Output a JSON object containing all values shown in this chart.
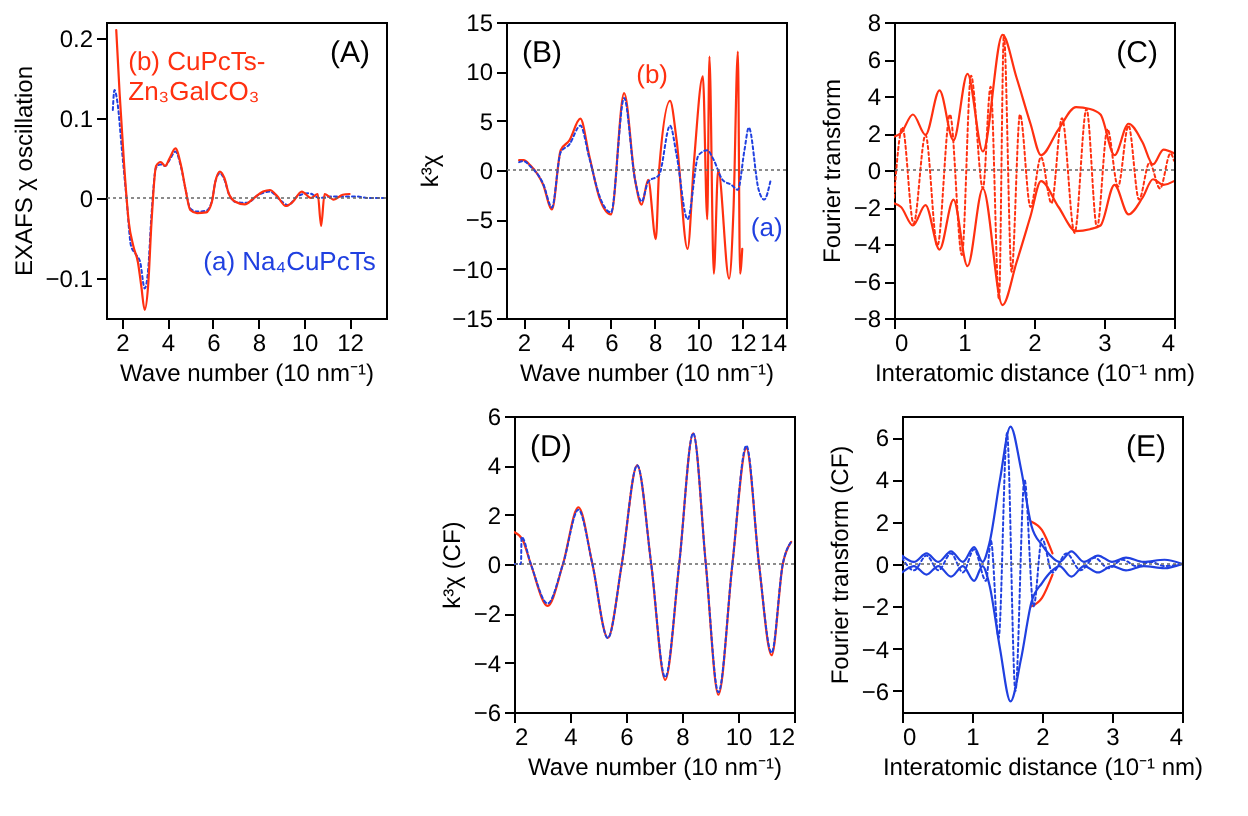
{
  "chart_data": [
    {
      "type": "line",
      "xlabel": "Wave number (10 nm⁻¹)",
      "ylabel": "EXAFS χ oscillation",
      "annotations": [
        "(A)"
      ],
      "xlim": [
        1.3,
        13.6
      ],
      "xticks": [
        2,
        4,
        6,
        8,
        10,
        12
      ],
      "ylim": [
        -0.15,
        0.22
      ],
      "yticks": [
        -0.1,
        0,
        0.1,
        0.2
      ],
      "ref_lines": [
        {
          "axis": "y",
          "value": 0,
          "color": "#666666",
          "line_style": "dotted"
        }
      ],
      "series": [
        {
          "name": "(a) Na₄CuPcTs",
          "color": "#2040e0",
          "line_style": "dotted",
          "x": [
            1.6,
            1.67,
            1.8,
            2.0,
            2.2,
            2.4,
            2.6,
            2.8,
            3.0,
            3.15,
            3.3,
            3.5,
            3.7,
            3.9,
            4.1,
            4.35,
            4.6,
            4.8,
            5.0,
            5.3,
            5.7,
            5.95,
            6.1,
            6.3,
            6.5,
            6.7,
            7.0,
            7.5,
            8.0,
            8.5,
            9.0,
            9.3,
            9.7,
            10.2,
            10.7,
            11.2,
            11.8,
            12.3,
            12.8,
            13.5
          ],
          "values": [
            0.11,
            0.135,
            0.12,
            0.06,
            0.0,
            -0.06,
            -0.07,
            -0.08,
            -0.113,
            -0.09,
            -0.02,
            0.038,
            0.042,
            0.04,
            0.048,
            0.058,
            0.038,
            0.01,
            -0.013,
            -0.017,
            -0.016,
            -0.004,
            0.02,
            0.031,
            0.023,
            0.005,
            -0.005,
            -0.006,
            0.004,
            0.008,
            -0.004,
            -0.009,
            0.002,
            0.006,
            0.0,
            0.002,
            0.002,
            0.002,
            0.0,
            0.0
          ]
        },
        {
          "name": "(b) CuPcTs-\nZn₃GalCO₃",
          "color": "#ff3010",
          "line_style": "solid",
          "x": [
            1.75,
            1.9,
            2.1,
            2.3,
            2.5,
            2.7,
            2.85,
            3.0,
            3.15,
            3.3,
            3.5,
            3.7,
            3.9,
            4.1,
            4.35,
            4.6,
            4.8,
            5.0,
            5.3,
            5.7,
            5.95,
            6.1,
            6.3,
            6.5,
            6.7,
            7.0,
            7.4,
            7.8,
            8.2,
            8.5,
            8.8,
            9.2,
            9.5,
            9.9,
            10.3,
            10.6,
            10.75,
            10.9,
            11.3,
            11.7,
            12.0
          ],
          "values": [
            0.21,
            0.13,
            0.04,
            -0.03,
            -0.06,
            -0.08,
            -0.11,
            -0.14,
            -0.11,
            -0.03,
            0.04,
            0.045,
            0.04,
            0.05,
            0.062,
            0.04,
            0.01,
            -0.015,
            -0.019,
            -0.018,
            -0.005,
            0.02,
            0.033,
            0.025,
            0.005,
            -0.005,
            -0.008,
            0.0,
            0.008,
            0.01,
            0.003,
            -0.01,
            -0.005,
            0.008,
            0.0,
            0.005,
            -0.035,
            0.005,
            -0.002,
            0.004,
            0.005
          ]
        }
      ]
    },
    {
      "type": "line",
      "xlabel": "Wave number (10 nm⁻¹)",
      "ylabel": "k³χ",
      "annotations": [
        "(B)"
      ],
      "xlim": [
        1.2,
        14
      ],
      "xticks": [
        2,
        4,
        6,
        8,
        10,
        12,
        14
      ],
      "ylim": [
        -15,
        15
      ],
      "yticks": [
        -15,
        -10,
        -5,
        0,
        5,
        10,
        15
      ],
      "ref_lines": [
        {
          "axis": "y",
          "value": 0,
          "color": "#666666",
          "line_style": "dotted"
        }
      ],
      "series": [
        {
          "name": "(b)",
          "color": "#ff3010",
          "line_style": "solid",
          "x": [
            1.8,
            2.0,
            2.3,
            2.9,
            3.3,
            3.7,
            4.1,
            4.6,
            5.0,
            5.5,
            6.0,
            6.6,
            7.1,
            7.4,
            7.7,
            8.05,
            8.2,
            8.7,
            9.0,
            9.5,
            9.8,
            10.2,
            10.4,
            10.5,
            10.7,
            10.9,
            11.4,
            11.6,
            11.8,
            11.9,
            12.0
          ],
          "values": [
            1.0,
            1.0,
            0.5,
            -1.5,
            -4.0,
            2.0,
            3.0,
            5.2,
            1.5,
            -3.0,
            -4.5,
            7.8,
            -1.0,
            -3.5,
            -1.0,
            -7.0,
            0.0,
            7.0,
            3.0,
            -8.0,
            1.0,
            9.5,
            -5.0,
            11.5,
            -10.5,
            0.0,
            -11.0,
            -4.0,
            12.0,
            -10.5,
            -8.0
          ]
        },
        {
          "name": "(a)",
          "color": "#2040e0",
          "line_style": "dotted",
          "x": [
            1.8,
            2.0,
            2.3,
            2.9,
            3.3,
            3.7,
            4.1,
            4.6,
            5.0,
            5.5,
            6.0,
            6.6,
            7.1,
            7.4,
            7.7,
            8.2,
            8.7,
            9.0,
            9.5,
            10.0,
            10.4,
            10.7,
            11.1,
            11.5,
            11.8,
            12.1,
            12.3,
            12.75,
            13.0,
            13.3
          ],
          "values": [
            0.8,
            0.9,
            0.4,
            -1.4,
            -3.8,
            1.8,
            2.6,
            4.5,
            1.3,
            -2.8,
            -4.3,
            7.3,
            -1.0,
            -3.2,
            -1.2,
            -0.5,
            4.5,
            1.5,
            -5.0,
            1.5,
            2.0,
            1.0,
            -1.0,
            -1.5,
            -2.0,
            2.0,
            4.3,
            -2.0,
            -3.0,
            -1.0
          ]
        }
      ]
    },
    {
      "type": "line",
      "xlabel": "Interatomic distance (10⁻¹ nm)",
      "ylabel": "Fourier transform",
      "annotations": [
        "(C)"
      ],
      "xlim": [
        0,
        4
      ],
      "xticks": [
        0,
        1,
        2,
        3,
        4
      ],
      "ylim": [
        -8,
        8
      ],
      "yticks": [
        -8,
        -6,
        -4,
        -2,
        0,
        2,
        4,
        6,
        8
      ],
      "ref_lines": [
        {
          "axis": "y",
          "value": 0,
          "color": "#666666",
          "line_style": "dotted"
        }
      ],
      "series": [
        {
          "color": "#ff3010",
          "line_style": "solid",
          "x": [
            0,
            0.1,
            0.27,
            0.45,
            0.65,
            0.85,
            1.05,
            1.27,
            1.55,
            1.75,
            1.95,
            2.1,
            2.35,
            2.6,
            2.8,
            2.95,
            3.15,
            3.35,
            3.55,
            3.7,
            3.85,
            4.0
          ],
          "values": [
            1.8,
            2.0,
            3.0,
            1.9,
            4.3,
            1.6,
            5.2,
            1.0,
            7.3,
            5.0,
            2.5,
            0.8,
            2.2,
            3.4,
            3.3,
            3.0,
            0.8,
            2.5,
            1.5,
            0.3,
            1.1,
            0.9
          ]
        },
        {
          "color": "#ff3010",
          "line_style": "solid",
          "x": [
            0,
            0.1,
            0.27,
            0.45,
            0.65,
            0.85,
            1.05,
            1.27,
            1.55,
            1.75,
            1.95,
            2.1,
            2.35,
            2.6,
            2.8,
            2.95,
            3.15,
            3.35,
            3.55,
            3.7,
            3.85,
            4.0
          ],
          "values": [
            -1.8,
            -2.0,
            -3.0,
            -1.9,
            -4.3,
            -1.6,
            -5.2,
            -1.0,
            -7.3,
            -5.0,
            -2.5,
            -0.6,
            -2.0,
            -3.3,
            -3.2,
            -3.0,
            -0.8,
            -2.4,
            -1.5,
            -0.5,
            -0.8,
            -0.6
          ]
        },
        {
          "color": "#ff3010",
          "line_style": "dotted",
          "x": [
            0,
            0.12,
            0.28,
            0.45,
            0.62,
            0.8,
            0.97,
            1.1,
            1.27,
            1.38,
            1.5,
            1.57,
            1.68,
            1.8,
            1.95,
            2.1,
            2.25,
            2.4,
            2.58,
            2.75,
            2.9,
            3.05,
            3.2,
            3.35,
            3.5,
            3.65,
            3.8,
            3.95,
            4.0
          ],
          "values": [
            -1.5,
            2.3,
            -2.9,
            1.9,
            -4.1,
            3.0,
            -4.6,
            5.1,
            -1.0,
            4.5,
            -7.0,
            7.3,
            -5.5,
            3.0,
            -2.0,
            0.7,
            -1.8,
            2.8,
            -3.4,
            3.3,
            -3.1,
            2.2,
            -0.9,
            2.4,
            -1.6,
            0.4,
            -1.0,
            0.9,
            0.5
          ]
        }
      ]
    },
    {
      "type": "line",
      "xlabel": "Wave number (10 nm⁻¹)",
      "ylabel": "k³χ (CF)",
      "annotations": [
        "(D)"
      ],
      "xlim": [
        2,
        12
      ],
      "xticks": [
        2,
        4,
        6,
        8,
        10,
        12
      ],
      "ylim": [
        -6,
        6
      ],
      "yticks": [
        -6,
        -4,
        -2,
        0,
        2,
        4,
        6
      ],
      "ref_lines": [
        {
          "axis": "y",
          "value": 0,
          "color": "#666666",
          "line_style": "dotted"
        }
      ],
      "series": [
        {
          "color": "#ff3010",
          "line_style": "solid",
          "x": [
            2.0,
            2.3,
            2.6,
            3.2,
            3.75,
            4.3,
            4.8,
            5.35,
            5.85,
            6.4,
            6.9,
            7.4,
            7.9,
            8.4,
            8.85,
            9.3,
            9.8,
            10.3,
            10.75,
            11.2,
            11.6,
            11.9
          ],
          "values": [
            1.3,
            1.0,
            0,
            -1.7,
            0,
            2.3,
            0,
            -3.0,
            0,
            4.0,
            0,
            -4.7,
            0,
            5.3,
            0,
            -5.3,
            0,
            4.7,
            0,
            -3.7,
            0,
            0.9
          ]
        },
        {
          "color": "#2040e0",
          "line_style": "dotted",
          "x": [
            2.0,
            2.25,
            2.27,
            2.6,
            3.2,
            3.75,
            4.3,
            4.8,
            5.35,
            5.85,
            6.4,
            6.9,
            7.4,
            7.9,
            8.4,
            8.85,
            9.3,
            9.8,
            10.3,
            10.75,
            11.2,
            11.6,
            11.9
          ],
          "values": [
            0,
            0,
            1.1,
            0,
            -1.6,
            0,
            2.2,
            0,
            -3.0,
            0,
            4.0,
            0,
            -4.6,
            0,
            5.3,
            0,
            -5.2,
            0,
            4.8,
            0,
            -3.6,
            0,
            0.9
          ]
        }
      ]
    },
    {
      "type": "line",
      "xlabel": "Interatomic distance (10⁻¹ nm)",
      "ylabel": "Fourier transform (CF)",
      "annotations": [
        "(E)"
      ],
      "xlim": [
        0,
        4
      ],
      "xticks": [
        0,
        1,
        2,
        3,
        4
      ],
      "ylim": [
        -7,
        7
      ],
      "yticks": [
        -6,
        -4,
        -2,
        0,
        2,
        4,
        6
      ],
      "ref_lines": [
        {
          "axis": "y",
          "value": 0,
          "color": "#666666",
          "line_style": "dotted"
        }
      ],
      "series": [
        {
          "color": "#ff3010",
          "line_style": "solid",
          "x": [
            1.85,
            2.0,
            2.15
          ],
          "values": [
            2.0,
            1.6,
            0.5
          ]
        },
        {
          "color": "#ff3010",
          "line_style": "solid",
          "x": [
            1.85,
            2.0,
            2.15
          ],
          "values": [
            -2.0,
            -1.6,
            -0.5
          ]
        },
        {
          "color": "#2040e0",
          "line_style": "solid",
          "x": [
            0,
            0.17,
            0.35,
            0.52,
            0.7,
            0.87,
            1.03,
            1.15,
            1.25,
            1.4,
            1.55,
            1.7,
            1.85,
            2.0,
            2.15,
            2.25,
            2.42,
            2.6,
            2.8,
            3.0,
            3.2,
            3.45,
            3.75,
            4.0
          ],
          "values": [
            0.4,
            0.1,
            0.5,
            0.1,
            0.6,
            0.1,
            0.8,
            0.1,
            1.0,
            4.0,
            6.5,
            4.5,
            1.8,
            0.9,
            0.3,
            0.1,
            0.6,
            0.1,
            0.4,
            0.1,
            0.3,
            0.1,
            0.2,
            0.0
          ]
        },
        {
          "color": "#2040e0",
          "line_style": "solid",
          "x": [
            0,
            0.17,
            0.35,
            0.52,
            0.7,
            0.87,
            1.03,
            1.15,
            1.25,
            1.4,
            1.55,
            1.7,
            1.85,
            2.0,
            2.15,
            2.25,
            2.42,
            2.6,
            2.8,
            3.0,
            3.2,
            3.45,
            3.75,
            4.0
          ],
          "values": [
            -0.4,
            -0.1,
            -0.5,
            -0.1,
            -0.6,
            -0.1,
            -0.8,
            -0.1,
            -1.0,
            -4.0,
            -6.5,
            -4.5,
            -1.8,
            -0.9,
            -0.3,
            -0.1,
            -0.6,
            -0.1,
            -0.4,
            -0.1,
            -0.3,
            -0.1,
            -0.2,
            0.0
          ]
        },
        {
          "color": "#2040e0",
          "line_style": "dotted",
          "x": [
            0,
            0.17,
            0.35,
            0.52,
            0.7,
            0.87,
            1.03,
            1.2,
            1.27,
            1.38,
            1.5,
            1.62,
            1.75,
            1.88,
            2.0,
            2.15,
            2.35,
            2.55,
            2.75,
            2.95,
            3.15,
            3.35,
            3.55,
            3.75,
            4.0
          ],
          "values": [
            0.3,
            -0.3,
            0.4,
            -0.3,
            0.5,
            -0.4,
            0.7,
            -0.8,
            1.1,
            -3.5,
            6.2,
            -6.0,
            4.0,
            -2.0,
            1.2,
            -0.4,
            0.5,
            -0.3,
            0.3,
            -0.2,
            0.2,
            -0.1,
            0.1,
            -0.1,
            0.0
          ]
        }
      ]
    }
  ]
}
